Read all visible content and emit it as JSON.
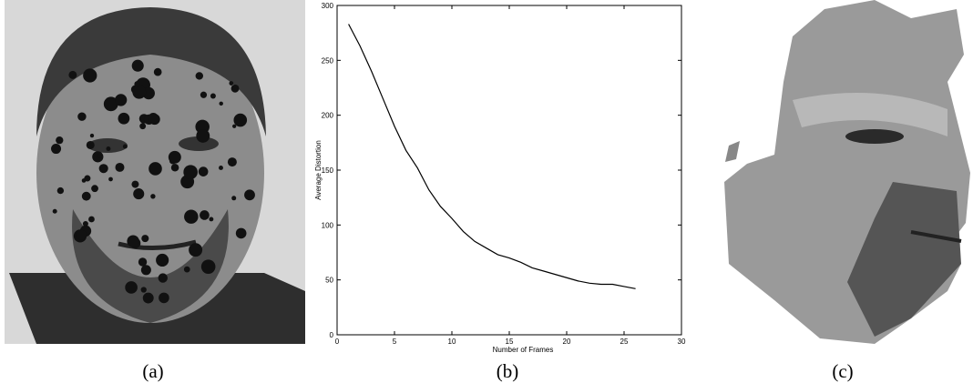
{
  "chart_data": {
    "type": "line",
    "x_label": "Number of Frames",
    "y_label": "Average Distortion",
    "x": [
      1,
      2,
      3,
      4,
      5,
      6,
      7,
      8,
      9,
      10,
      11,
      12,
      13,
      14,
      15,
      16,
      17,
      18,
      19,
      20,
      21,
      22,
      23,
      24,
      25,
      26
    ],
    "values": [
      283,
      263,
      240,
      215,
      190,
      168,
      152,
      132,
      117,
      106,
      94,
      85,
      79,
      73,
      70,
      66,
      61,
      58,
      55,
      52,
      49,
      47,
      46,
      46,
      44,
      42
    ],
    "color": "#000000",
    "xlim": [
      0,
      30
    ],
    "ylim": [
      0,
      300
    ],
    "xticks": [
      0,
      5,
      10,
      15,
      20,
      25,
      30
    ],
    "yticks": [
      0,
      50,
      100,
      150,
      200,
      250,
      300
    ]
  },
  "captions": [
    "(a)",
    "(b)",
    "(c)"
  ]
}
